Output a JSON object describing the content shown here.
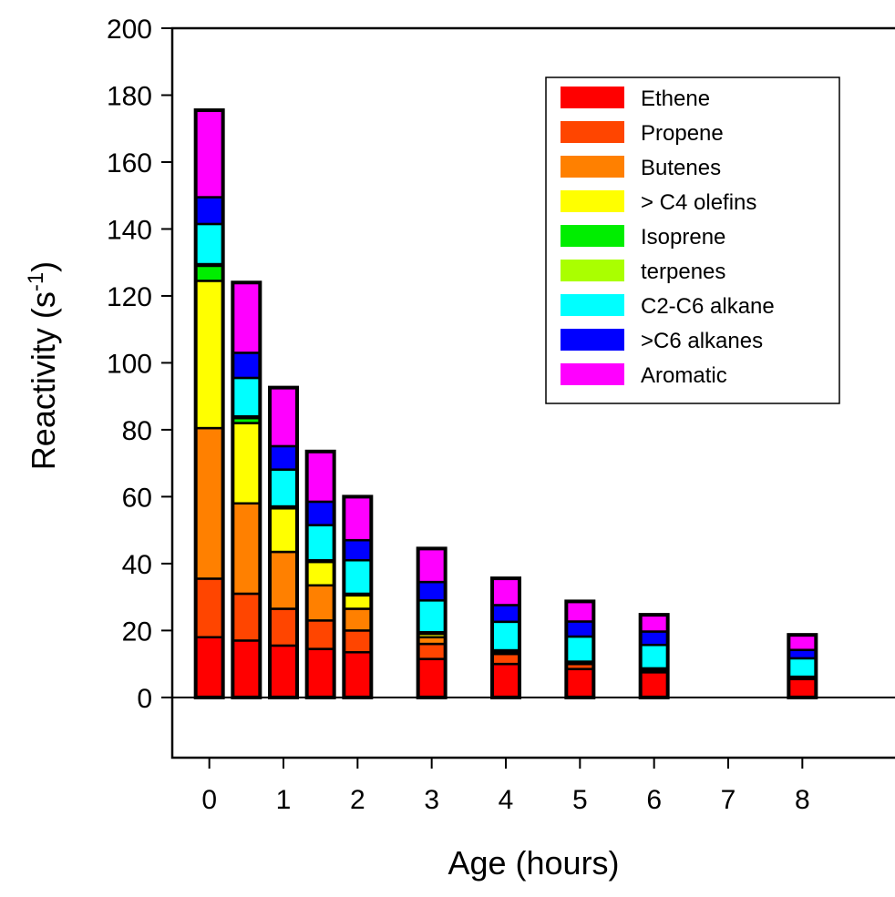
{
  "chart_data": {
    "type": "bar",
    "stacked": true,
    "xlabel": "Age (hours)",
    "ylabel": "Reactivity (s",
    "ylabel_superscript": "-1",
    "ylabel_suffix": ")",
    "xlim": [
      -0.5,
      9.25
    ],
    "ylim": [
      -18,
      200
    ],
    "xticks": [
      "0",
      "1",
      "2",
      "3",
      "4",
      "5",
      "6",
      "7",
      "8"
    ],
    "yticks": [
      "0",
      "20",
      "40",
      "60",
      "80",
      "100",
      "120",
      "140",
      "160",
      "180",
      "200"
    ],
    "grid": false,
    "legend_position": "top-right",
    "x": [
      0,
      0.5,
      1,
      1.5,
      2,
      3,
      4,
      5,
      6,
      8
    ],
    "series": [
      {
        "name": "Ethene",
        "color": "#ff0000",
        "values": [
          18,
          17,
          15.5,
          14.5,
          13.5,
          11.5,
          10,
          8.5,
          7.5,
          5.5
        ]
      },
      {
        "name": "Propene",
        "color": "#ff4500",
        "values": [
          17.5,
          14,
          11,
          8.5,
          6.5,
          4.5,
          3,
          1.5,
          0.5,
          0.3
        ]
      },
      {
        "name": "Butenes",
        "color": "#ff8000",
        "values": [
          45,
          27,
          17,
          10.5,
          6.5,
          2,
          0.5,
          0.2,
          0.2,
          0.1
        ]
      },
      {
        "name": "> C4 olefins",
        "color": "#ffff00",
        "values": [
          44,
          24,
          13,
          7,
          4,
          1,
          0.3,
          0.2,
          0.2,
          0.1
        ]
      },
      {
        "name": "Isoprene",
        "color": "#00ee00",
        "values": [
          4.5,
          1.5,
          0.3,
          0.3,
          0.3,
          0.3,
          0.2,
          0.2,
          0.2,
          0.1
        ]
      },
      {
        "name": "terpenes",
        "color": "#aaff00",
        "values": [
          0.5,
          0.5,
          0.3,
          0.2,
          0.2,
          0.2,
          0.1,
          0.1,
          0.1,
          0.1
        ]
      },
      {
        "name": "C2-C6 alkane",
        "color": "#00ffff",
        "values": [
          12,
          11.5,
          11,
          10.5,
          10,
          9.5,
          8.5,
          7.5,
          7,
          5.5
        ]
      },
      {
        "name": ">C6 alkanes",
        "color": "#0000ff",
        "values": [
          8,
          7.5,
          7,
          7,
          6,
          5.5,
          5,
          4.5,
          4,
          2.5
        ]
      },
      {
        "name": "Aromatic",
        "color": "#ff00ff",
        "values": [
          26,
          21,
          17.5,
          15,
          13,
          10,
          8,
          6,
          5,
          4.5
        ]
      }
    ]
  }
}
